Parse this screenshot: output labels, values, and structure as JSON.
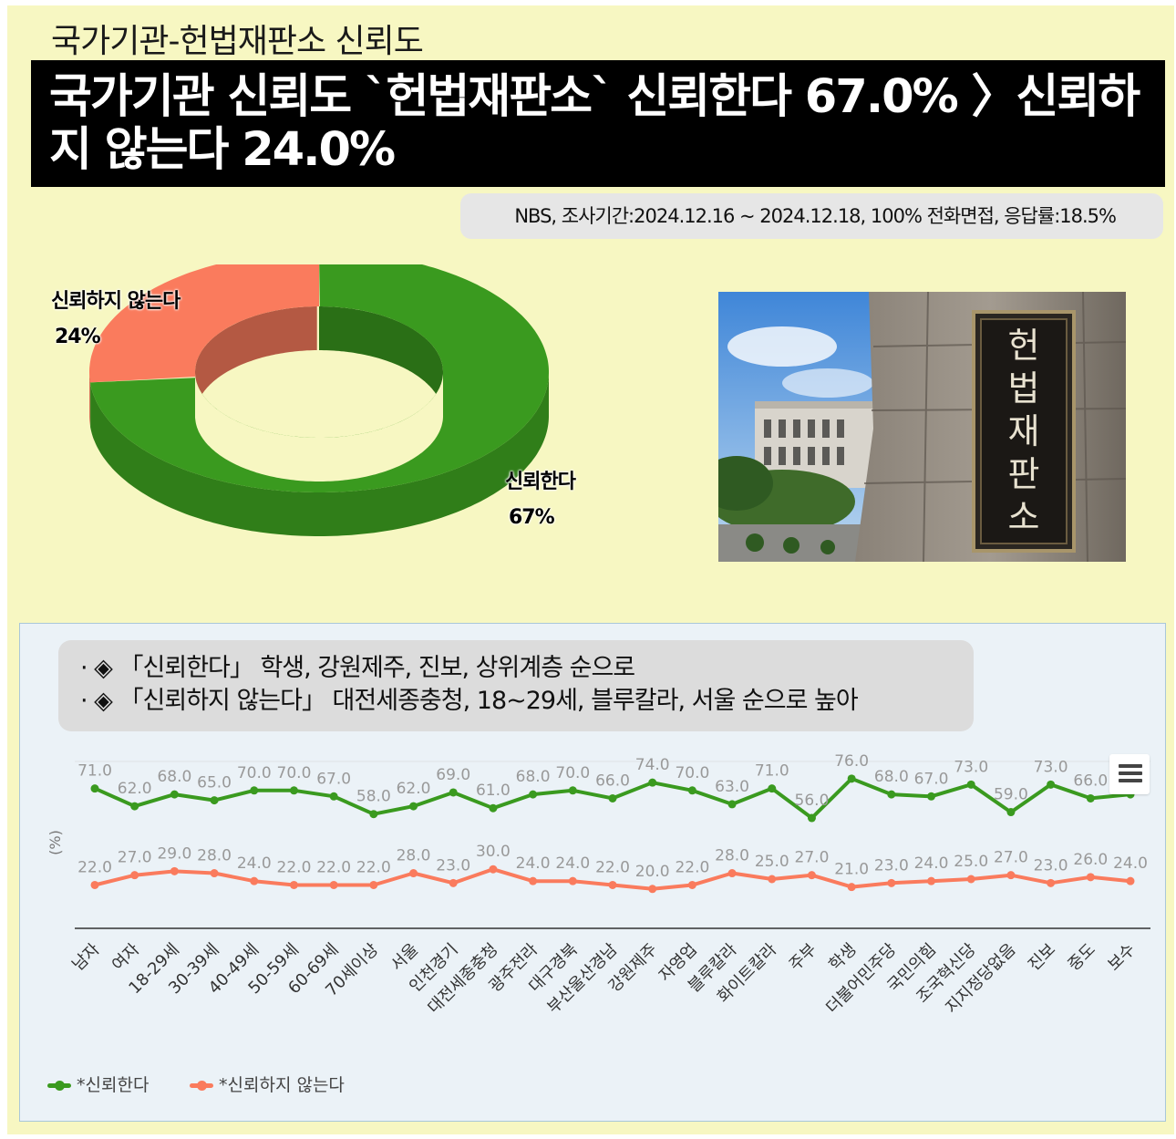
{
  "supertitle": "국가기관-헌법재판소 신뢰도",
  "headline": "국가기관 신뢰도 `헌법재판소` 신뢰한다 67.0% 〉신뢰하지 않는다 24.0%",
  "survey_info": "NBS, 조사기간:2024.12.16 ~ 2024.12.18, 100% 전화면접, 응답률:18.5%",
  "photo": {
    "sign_chars": [
      "헌",
      "법",
      "재",
      "판",
      "소"
    ]
  },
  "notes": [
    "· ◈ 「신뢰한다」 학생, 강원제주, 진보, 상위계층 순으로",
    "· ◈ 「신뢰하지 않는다」 대전세종충청, 18~29세, 블루칼라, 서울 순으로 높아"
  ],
  "colors": {
    "trust": "#3a9a1f",
    "distrust": "#fa7b5d",
    "background": "#f7f7c2",
    "panel": "#ebf2f7"
  },
  "chart_data": [
    {
      "type": "pie",
      "style": "3d-donut",
      "labels": [
        "신뢰한다",
        "신뢰하지 않는다"
      ],
      "values": [
        67,
        24
      ],
      "value_labels": [
        "67%",
        "24%"
      ],
      "colors": [
        "#3a9a1f",
        "#fa7b5d"
      ]
    },
    {
      "type": "line",
      "ylabel": "(%)",
      "categories": [
        "남자",
        "여자",
        "18-29세",
        "30-39세",
        "40-49세",
        "50-59세",
        "60-69세",
        "70세이상",
        "서울",
        "인천경기",
        "대전세종충청",
        "광주전라",
        "대구경북",
        "부산울산경남",
        "강원제주",
        "자영업",
        "블루칼라",
        "화이트칼라",
        "주부",
        "학생",
        "더불어민주당",
        "국민의힘",
        "조국혁신당",
        "지지정당없음",
        "진보",
        "중도",
        "보수"
      ],
      "series": [
        {
          "name": "*신뢰한다",
          "color": "#3a9a1f",
          "values": [
            71.0,
            62.0,
            68.0,
            65.0,
            70.0,
            70.0,
            67.0,
            58.0,
            62.0,
            69.0,
            61.0,
            68.0,
            70.0,
            66.0,
            74.0,
            70.0,
            63.0,
            71.0,
            56.0,
            76.0,
            68.0,
            67.0,
            73.0,
            59.0,
            73.0,
            66.0,
            68.0
          ]
        },
        {
          "name": "*신뢰하지 않는다",
          "color": "#fa7b5d",
          "values": [
            22.0,
            27.0,
            29.0,
            28.0,
            24.0,
            22.0,
            22.0,
            22.0,
            28.0,
            23.0,
            30.0,
            24.0,
            24.0,
            22.0,
            20.0,
            22.0,
            28.0,
            25.0,
            27.0,
            21.0,
            23.0,
            24.0,
            25.0,
            27.0,
            23.0,
            26.0,
            24.0
          ]
        }
      ],
      "ylim": [
        0,
        100
      ],
      "grid": false,
      "legend": "bottom-left"
    }
  ]
}
